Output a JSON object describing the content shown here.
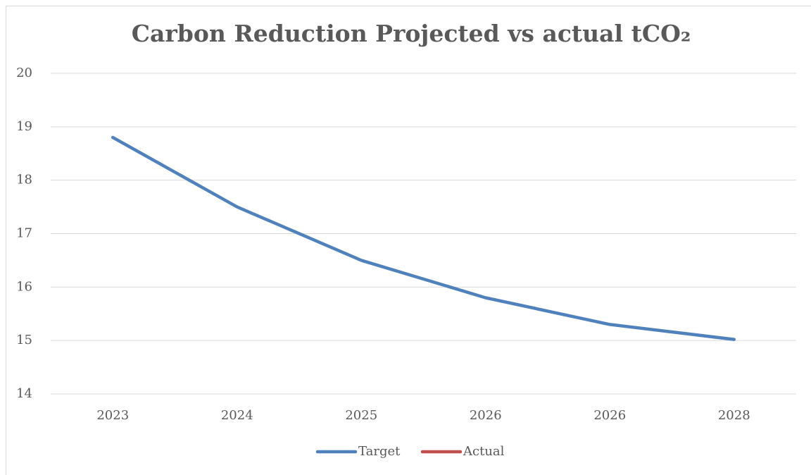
{
  "chart_data": {
    "type": "line",
    "title": "Carbon Reduction Projected vs actual tCO₂",
    "categories": [
      "2023",
      "2024",
      "2025",
      "2026",
      "2026",
      "2028"
    ],
    "series": [
      {
        "name": "Target",
        "color": "#4f81bd",
        "values": [
          18.8,
          17.5,
          16.5,
          15.8,
          15.3,
          15.02
        ]
      },
      {
        "name": "Actual",
        "color": "#c0504d",
        "values": [
          null,
          null,
          null,
          null,
          null,
          null
        ]
      }
    ],
    "ylim": [
      14,
      20
    ],
    "yticks": [
      14,
      15,
      16,
      17,
      18,
      19,
      20
    ],
    "grid": true,
    "legend": "bottom"
  }
}
